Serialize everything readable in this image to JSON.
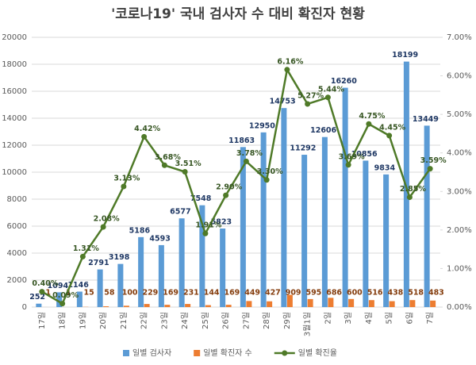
{
  "chart_data": {
    "type": "bar-line",
    "title": "'코로나19' 국내 검사자 수 대비 확진자 현황",
    "categories": [
      "17일",
      "18일",
      "19일",
      "20일",
      "21일",
      "22일",
      "23일",
      "24일",
      "25일",
      "26일",
      "27일",
      "28일",
      "29일",
      "3월1일",
      "2일",
      "3일",
      "4일",
      "5일",
      "6일",
      "7일"
    ],
    "series": [
      {
        "name": "일별 검사자",
        "color": "#5b9bd5",
        "label_color": "#1f3864",
        "values": [
          252,
          1094,
          1146,
          2791,
          3198,
          5186,
          4593,
          6577,
          7548,
          5823,
          11863,
          12950,
          14753,
          11292,
          12606,
          16260,
          10856,
          9834,
          18199,
          13449
        ]
      },
      {
        "name": "일별 확진자 수",
        "color": "#ed7d31",
        "label_color": "#843c0c",
        "values": [
          1,
          1,
          15,
          58,
          100,
          229,
          169,
          231,
          144,
          169,
          449,
          427,
          909,
          595,
          686,
          600,
          516,
          438,
          518,
          483
        ]
      },
      {
        "name": "일별 확진율",
        "color": "#4f7a28",
        "label_color": "#375623",
        "axis": "y2",
        "values": [
          0.4,
          0.09,
          1.31,
          2.08,
          3.13,
          4.42,
          3.68,
          3.51,
          1.91,
          2.9,
          3.78,
          3.3,
          6.16,
          5.27,
          5.44,
          3.69,
          4.75,
          4.45,
          2.85,
          3.59
        ],
        "value_labels": [
          "0.40%",
          "0.09%",
          "1.31%",
          "2.08%",
          "3.13%",
          "4.42%",
          "3.68%",
          "3.51%",
          "1.91%",
          "2.90%",
          "3.78%",
          "3.30%",
          "6.16%",
          "5.27%",
          "5.44%",
          "3.69%",
          "4.75%",
          "4.45%",
          "2.85%",
          "3.59%"
        ]
      }
    ],
    "ylim": [
      0,
      20000
    ],
    "yticks": [
      0,
      2000,
      4000,
      6000,
      8000,
      10000,
      12000,
      14000,
      16000,
      18000,
      20000
    ],
    "y2lim": [
      0,
      7
    ],
    "y2ticks": [
      {
        "value": 0,
        "label": "0.00%"
      },
      {
        "value": 1,
        "label": "1.00%"
      },
      {
        "value": 2,
        "label": "2.00%"
      },
      {
        "value": 3,
        "label": "3.00%"
      },
      {
        "value": 4,
        "label": "4.00%"
      },
      {
        "value": 5,
        "label": "5.00%"
      },
      {
        "value": 6,
        "label": "6.00%"
      },
      {
        "value": 7,
        "label": "7.00%"
      }
    ],
    "legend": "bottom"
  }
}
